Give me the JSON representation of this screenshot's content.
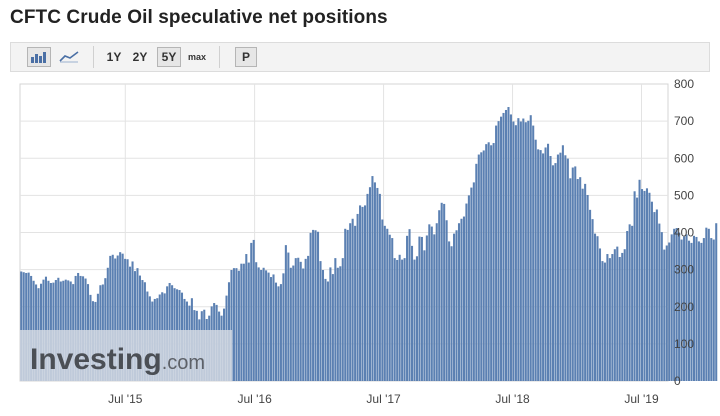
{
  "title": "CFTC Crude Oil speculative net positions",
  "toolbar": {
    "chart_type_icons": [
      "bar-chart-icon",
      "line-chart-icon"
    ],
    "ranges": [
      "1Y",
      "2Y",
      "5Y",
      "max"
    ],
    "selected_range": "5Y",
    "p_label": "P"
  },
  "watermark": {
    "brand": "Investing",
    "suffix": ".com"
  },
  "colors": {
    "bar": "#5b80b2",
    "grid": "#e3e3e3",
    "axis_text": "#444444"
  },
  "chart_data": {
    "type": "bar",
    "title": "CFTC Crude Oil speculative net positions",
    "xlabel": "",
    "ylabel": "",
    "ylim": [
      0,
      800
    ],
    "yticks": [
      0,
      100,
      200,
      300,
      400,
      500,
      600,
      700,
      800
    ],
    "y_axis_side": "right",
    "grid": true,
    "x_range": [
      "2014-09-06",
      "2019-09-14"
    ],
    "xticks": [
      {
        "label": "Jul '15",
        "date": "2015-07-01"
      },
      {
        "label": "Jul '16",
        "date": "2016-07-01"
      },
      {
        "label": "Jul '17",
        "date": "2017-07-01"
      },
      {
        "label": "Jul '18",
        "date": "2018-07-01"
      },
      {
        "label": "Jul '19",
        "date": "2019-07-01"
      }
    ],
    "series": [
      {
        "frequency": "weekly",
        "start_date": "2014-09-06",
        "values": [
          295,
          293,
          291,
          292,
          283,
          270,
          260,
          250,
          262,
          273,
          281,
          270,
          264,
          265,
          272,
          278,
          268,
          270,
          273,
          271,
          268,
          261,
          283,
          291,
          283,
          282,
          276,
          261,
          232,
          215,
          213,
          235,
          258,
          260,
          277,
          305,
          337,
          340,
          330,
          338,
          347,
          343,
          329,
          328,
          308,
          322,
          296,
          304,
          284,
          272,
          266,
          241,
          228,
          214,
          221,
          223,
          233,
          239,
          236,
          255,
          264,
          258,
          250,
          247,
          245,
          238,
          221,
          214,
          203,
          223,
          191,
          189,
          166,
          188,
          192,
          167,
          176,
          201,
          210,
          205,
          187,
          176,
          195,
          230,
          266,
          299,
          304,
          304,
          297,
          316,
          316,
          342,
          319,
          372,
          380,
          320,
          306,
          299,
          305,
          298,
          292,
          280,
          287,
          265,
          255,
          261,
          290,
          366,
          346,
          305,
          311,
          331,
          332,
          321,
          303,
          329,
          337,
          399,
          407,
          406,
          402,
          323,
          299,
          275,
          268,
          306,
          288,
          331,
          305,
          309,
          331,
          410,
          407,
          425,
          437,
          418,
          450,
          473,
          469,
          473,
          504,
          522,
          552,
          535,
          520,
          504,
          435,
          418,
          410,
          394,
          385,
          331,
          326,
          340,
          327,
          331,
          391,
          409,
          364,
          327,
          336,
          389,
          388,
          352,
          392,
          422,
          416,
          395,
          425,
          460,
          480,
          477,
          433,
          376,
          363,
          397,
          406,
          425,
          437,
          443,
          478,
          500,
          521,
          535,
          585,
          610,
          616,
          621,
          638,
          643,
          635,
          641,
          688,
          700,
          712,
          722,
          730,
          738,
          718,
          699,
          689,
          708,
          699,
          707,
          697,
          701,
          716,
          688,
          650,
          624,
          622,
          613,
          629,
          639,
          606,
          581,
          587,
          610,
          615,
          635,
          608,
          599,
          546,
          575,
          578,
          544,
          549,
          518,
          531,
          501,
          461,
          436,
          397,
          390,
          357,
          323,
          319,
          342,
          331,
          342,
          355,
          362,
          334,
          345,
          355,
          404,
          422,
          418,
          511,
          494,
          542,
          517,
          512,
          519,
          507,
          483,
          455,
          462,
          424,
          401,
          354,
          365,
          373,
          395,
          410,
          412,
          400,
          381,
          389,
          395,
          378,
          372,
          391,
          388,
          376,
          372,
          385,
          413,
          410,
          385,
          381,
          425
        ]
      }
    ]
  }
}
